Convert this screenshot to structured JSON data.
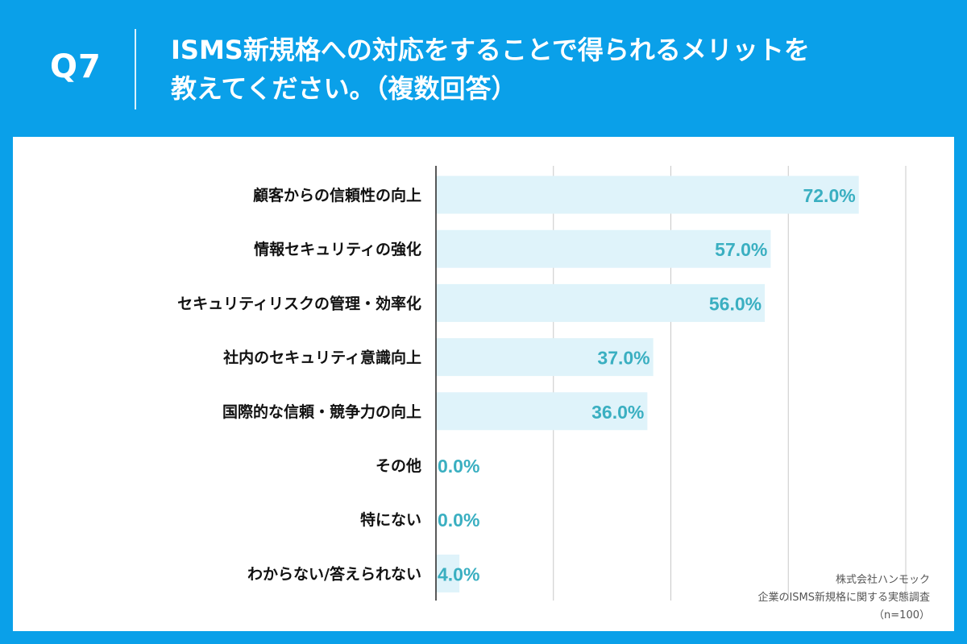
{
  "header": {
    "question_no": "Q7",
    "title_line1": "ISMS新規格への対応をすることで得られるメリットを",
    "title_line2": "教えてください。（複数回答）"
  },
  "colors": {
    "header_bg": "#0aa0e9",
    "bar_fill": "#dff3fa",
    "value_label": "#3aafc1",
    "grid": "#c8c8c8",
    "axis": "#222222"
  },
  "chart_data": {
    "type": "bar",
    "orientation": "horizontal",
    "categories": [
      "顧客からの信頼性の向上",
      "情報セキュリティの強化",
      "セキュリティリスクの管理・効率化",
      "社内のセキュリティ意識向上",
      "国際的な信頼・競争力の向上",
      "その他",
      "特にない",
      "わからない/答えられない"
    ],
    "values": [
      72.0,
      57.0,
      56.0,
      37.0,
      36.0,
      0.0,
      0.0,
      4.0
    ],
    "value_labels": [
      "72.0%",
      "57.0%",
      "56.0%",
      "37.0%",
      "36.0%",
      "0.0%",
      "0.0%",
      "4.0%"
    ],
    "xlim": [
      0,
      80
    ],
    "grid_step": 20,
    "grid": true,
    "legend": false
  },
  "notes": {
    "company": "株式会社ハンモック",
    "survey": "企業のISMS新規格に関する実態調査",
    "sample": "（n=100）"
  }
}
